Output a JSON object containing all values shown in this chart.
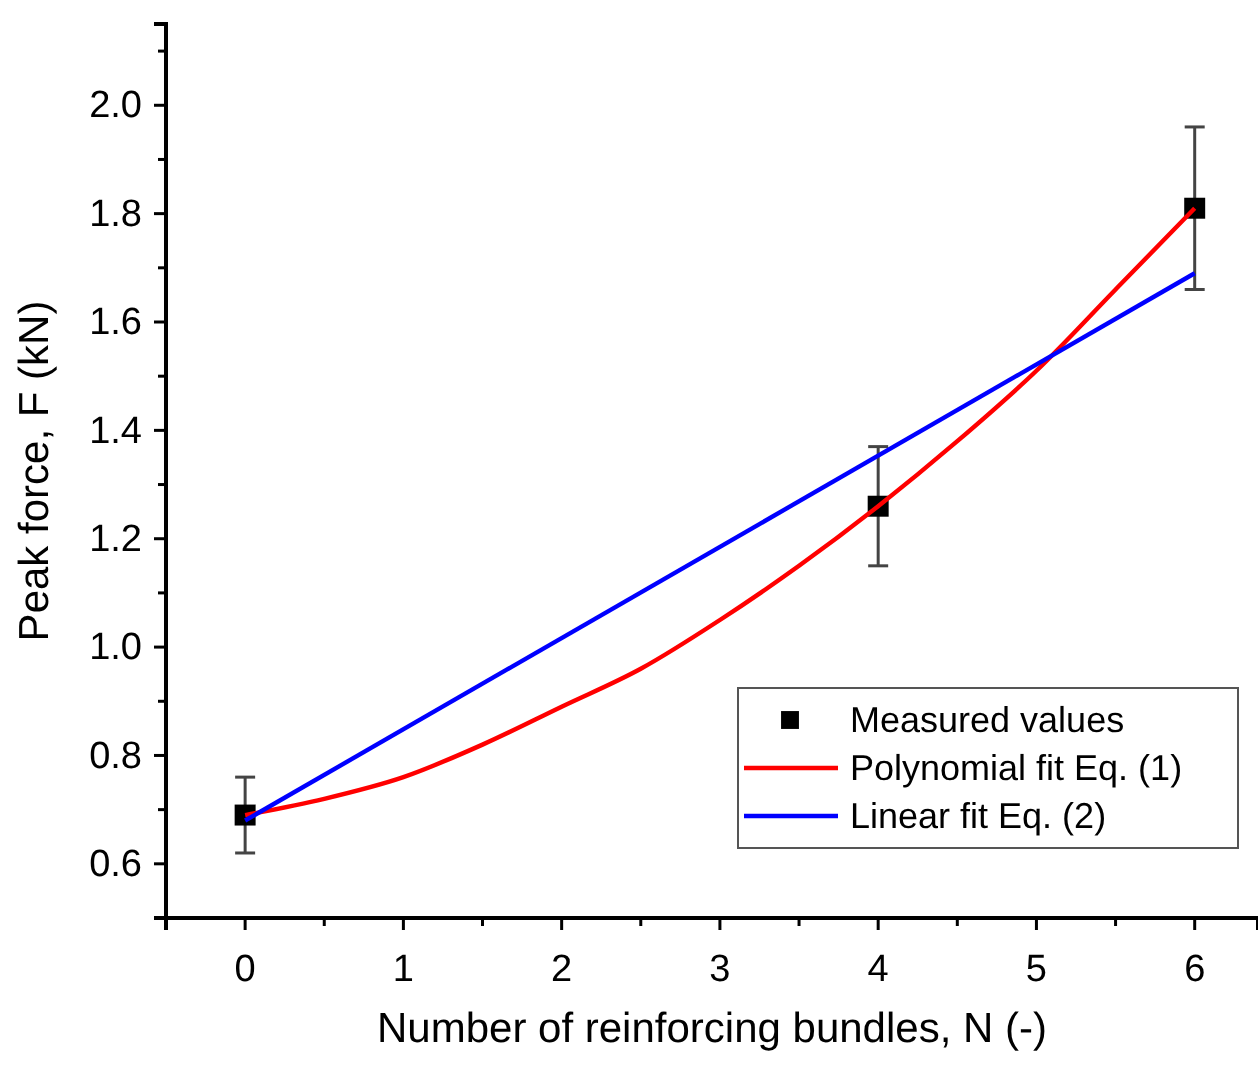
{
  "chart_data": {
    "type": "scatter",
    "xlabel": "Number of reinforcing bundles, N (-)",
    "ylabel": "Peak force, F (kN)",
    "xlim": [
      -0.5,
      6.4
    ],
    "xticks": [
      0,
      1,
      2,
      3,
      4,
      5,
      6
    ],
    "ylim": [
      0.5,
      2.15
    ],
    "yticks": [
      {
        "value": 0.6,
        "label": "0.6"
      },
      {
        "value": 0.8,
        "label": "0.8"
      },
      {
        "value": 1.0,
        "label": "1.0"
      },
      {
        "value": 1.2,
        "label": "1.2"
      },
      {
        "value": 1.4,
        "label": "1.4"
      },
      {
        "value": 1.6,
        "label": "1.6"
      },
      {
        "value": 1.8,
        "label": "1.8"
      },
      {
        "value": 2.0,
        "label": "2.0"
      }
    ],
    "legend": "bottom right",
    "grid": false,
    "series": [
      {
        "name": "Measured values",
        "marker": "square",
        "color": "#000000",
        "x": [
          0,
          4,
          6
        ],
        "values": [
          0.69,
          1.26,
          1.81
        ],
        "errors": [
          [
            0.62,
            0.76
          ],
          [
            1.15,
            1.37
          ],
          [
            1.66,
            1.96
          ]
        ]
      },
      {
        "name": "Polynomial fit Eq. (1)",
        "type": "line",
        "color": "#ff0000",
        "x": [
          0,
          0.5,
          1,
          1.5,
          2,
          2.5,
          3,
          3.5,
          4,
          4.5,
          5,
          5.5,
          6
        ],
        "values": [
          0.69,
          0.72,
          0.76,
          0.82,
          0.89,
          0.96,
          1.05,
          1.15,
          1.26,
          1.38,
          1.51,
          1.66,
          1.81
        ]
      },
      {
        "name": "Linear fit Eq. (2)",
        "type": "line",
        "color": "#0000ff",
        "x": [
          0,
          6
        ],
        "values": [
          0.68,
          1.69
        ]
      }
    ]
  }
}
